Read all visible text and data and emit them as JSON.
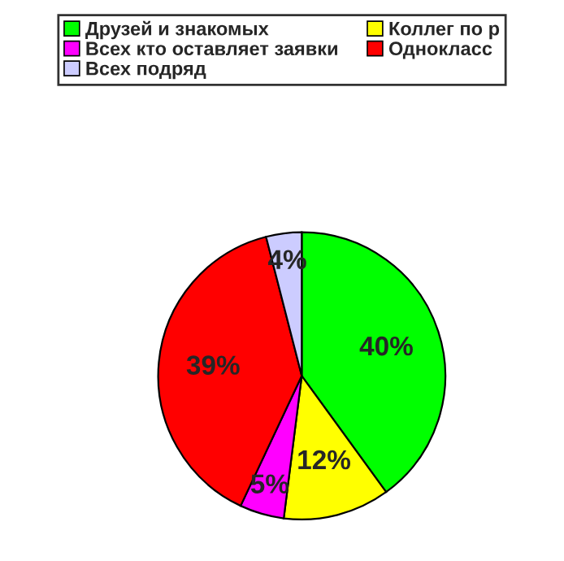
{
  "chart_data": {
    "type": "pie",
    "categories": [
      "Друзей и знакомых",
      "Коллег по р",
      "Всех кто оставляет заявки",
      "Однокласс",
      "Всех подряд"
    ],
    "values": [
      40,
      12,
      5,
      39,
      4
    ],
    "colors": [
      "#00ff00",
      "#ffff00",
      "#ff00ff",
      "#ff0000",
      "#ccccff"
    ],
    "value_labels": [
      "40%",
      "12%",
      "5%",
      "39%",
      "4%"
    ],
    "legend": "top"
  }
}
